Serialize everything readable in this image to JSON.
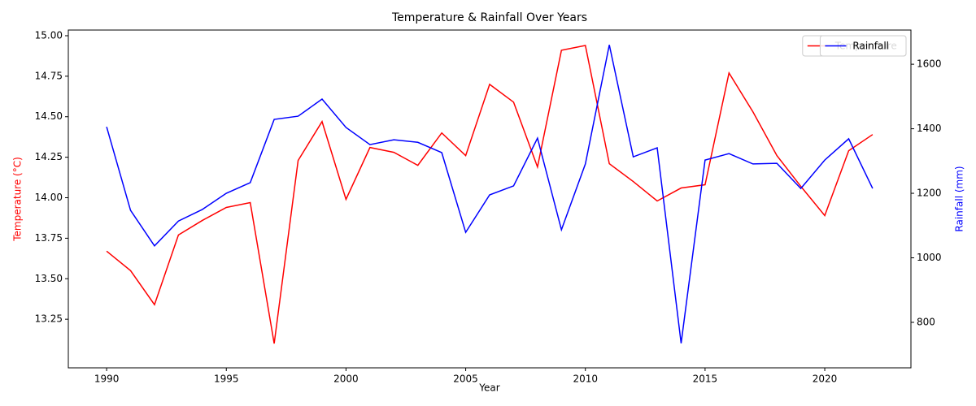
{
  "chart_data": {
    "type": "line",
    "title": "Temperature & Rainfall Over Years",
    "xlabel": "Year",
    "ylabel": "Temperature (°C)",
    "y2label": "Rainfall (mm)",
    "x": [
      1990,
      1991,
      1992,
      1993,
      1994,
      1995,
      1996,
      1997,
      1998,
      1999,
      2000,
      2001,
      2002,
      2003,
      2004,
      2005,
      2006,
      2007,
      2008,
      2009,
      2010,
      2011,
      2012,
      2013,
      2014,
      2015,
      2016,
      2017,
      2018,
      2019,
      2020,
      2021,
      2022
    ],
    "series": [
      {
        "name": "Temperature",
        "color": "red",
        "axis": "y",
        "values": [
          13.67,
          13.55,
          13.34,
          13.77,
          13.86,
          13.94,
          13.97,
          13.1,
          14.23,
          14.47,
          13.99,
          14.31,
          14.28,
          14.2,
          14.4,
          14.26,
          14.7,
          14.59,
          14.19,
          14.91,
          14.94,
          14.21,
          14.1,
          13.98,
          14.06,
          14.08,
          14.77,
          14.53,
          14.26,
          14.07,
          13.89,
          14.29,
          14.39
        ]
      },
      {
        "name": "Rainfall",
        "color": "blue",
        "axis": "y2",
        "values": [
          1406,
          1147,
          1037,
          1114,
          1150,
          1200,
          1233,
          1429,
          1439,
          1492,
          1404,
          1351,
          1366,
          1358,
          1326,
          1079,
          1195,
          1223,
          1371,
          1087,
          1291,
          1660,
          1313,
          1341,
          735,
          1303,
          1323,
          1291,
          1293,
          1215,
          1303,
          1369,
          1215
        ]
      }
    ],
    "xlim": [
      1988.4,
      2023.6
    ],
    "xticks": [
      1990,
      1995,
      2000,
      2005,
      2010,
      2015,
      2020
    ],
    "ylim": [
      12.95,
      15.035
    ],
    "yticks": [
      {
        "value": 13.25,
        "label": "13.25"
      },
      {
        "value": 13.5,
        "label": "13.50"
      },
      {
        "value": 13.75,
        "label": "13.75"
      },
      {
        "value": 14,
        "label": "14.00"
      },
      {
        "value": 14.25,
        "label": "14.25"
      },
      {
        "value": 14.5,
        "label": "14.50"
      },
      {
        "value": 14.75,
        "label": "14.75"
      },
      {
        "value": 15,
        "label": "15.00"
      }
    ],
    "y2lim": [
      659,
      1706
    ],
    "y2ticks": [
      800,
      1000,
      1200,
      1400,
      1600
    ],
    "grid": false,
    "legend": "upper right"
  }
}
